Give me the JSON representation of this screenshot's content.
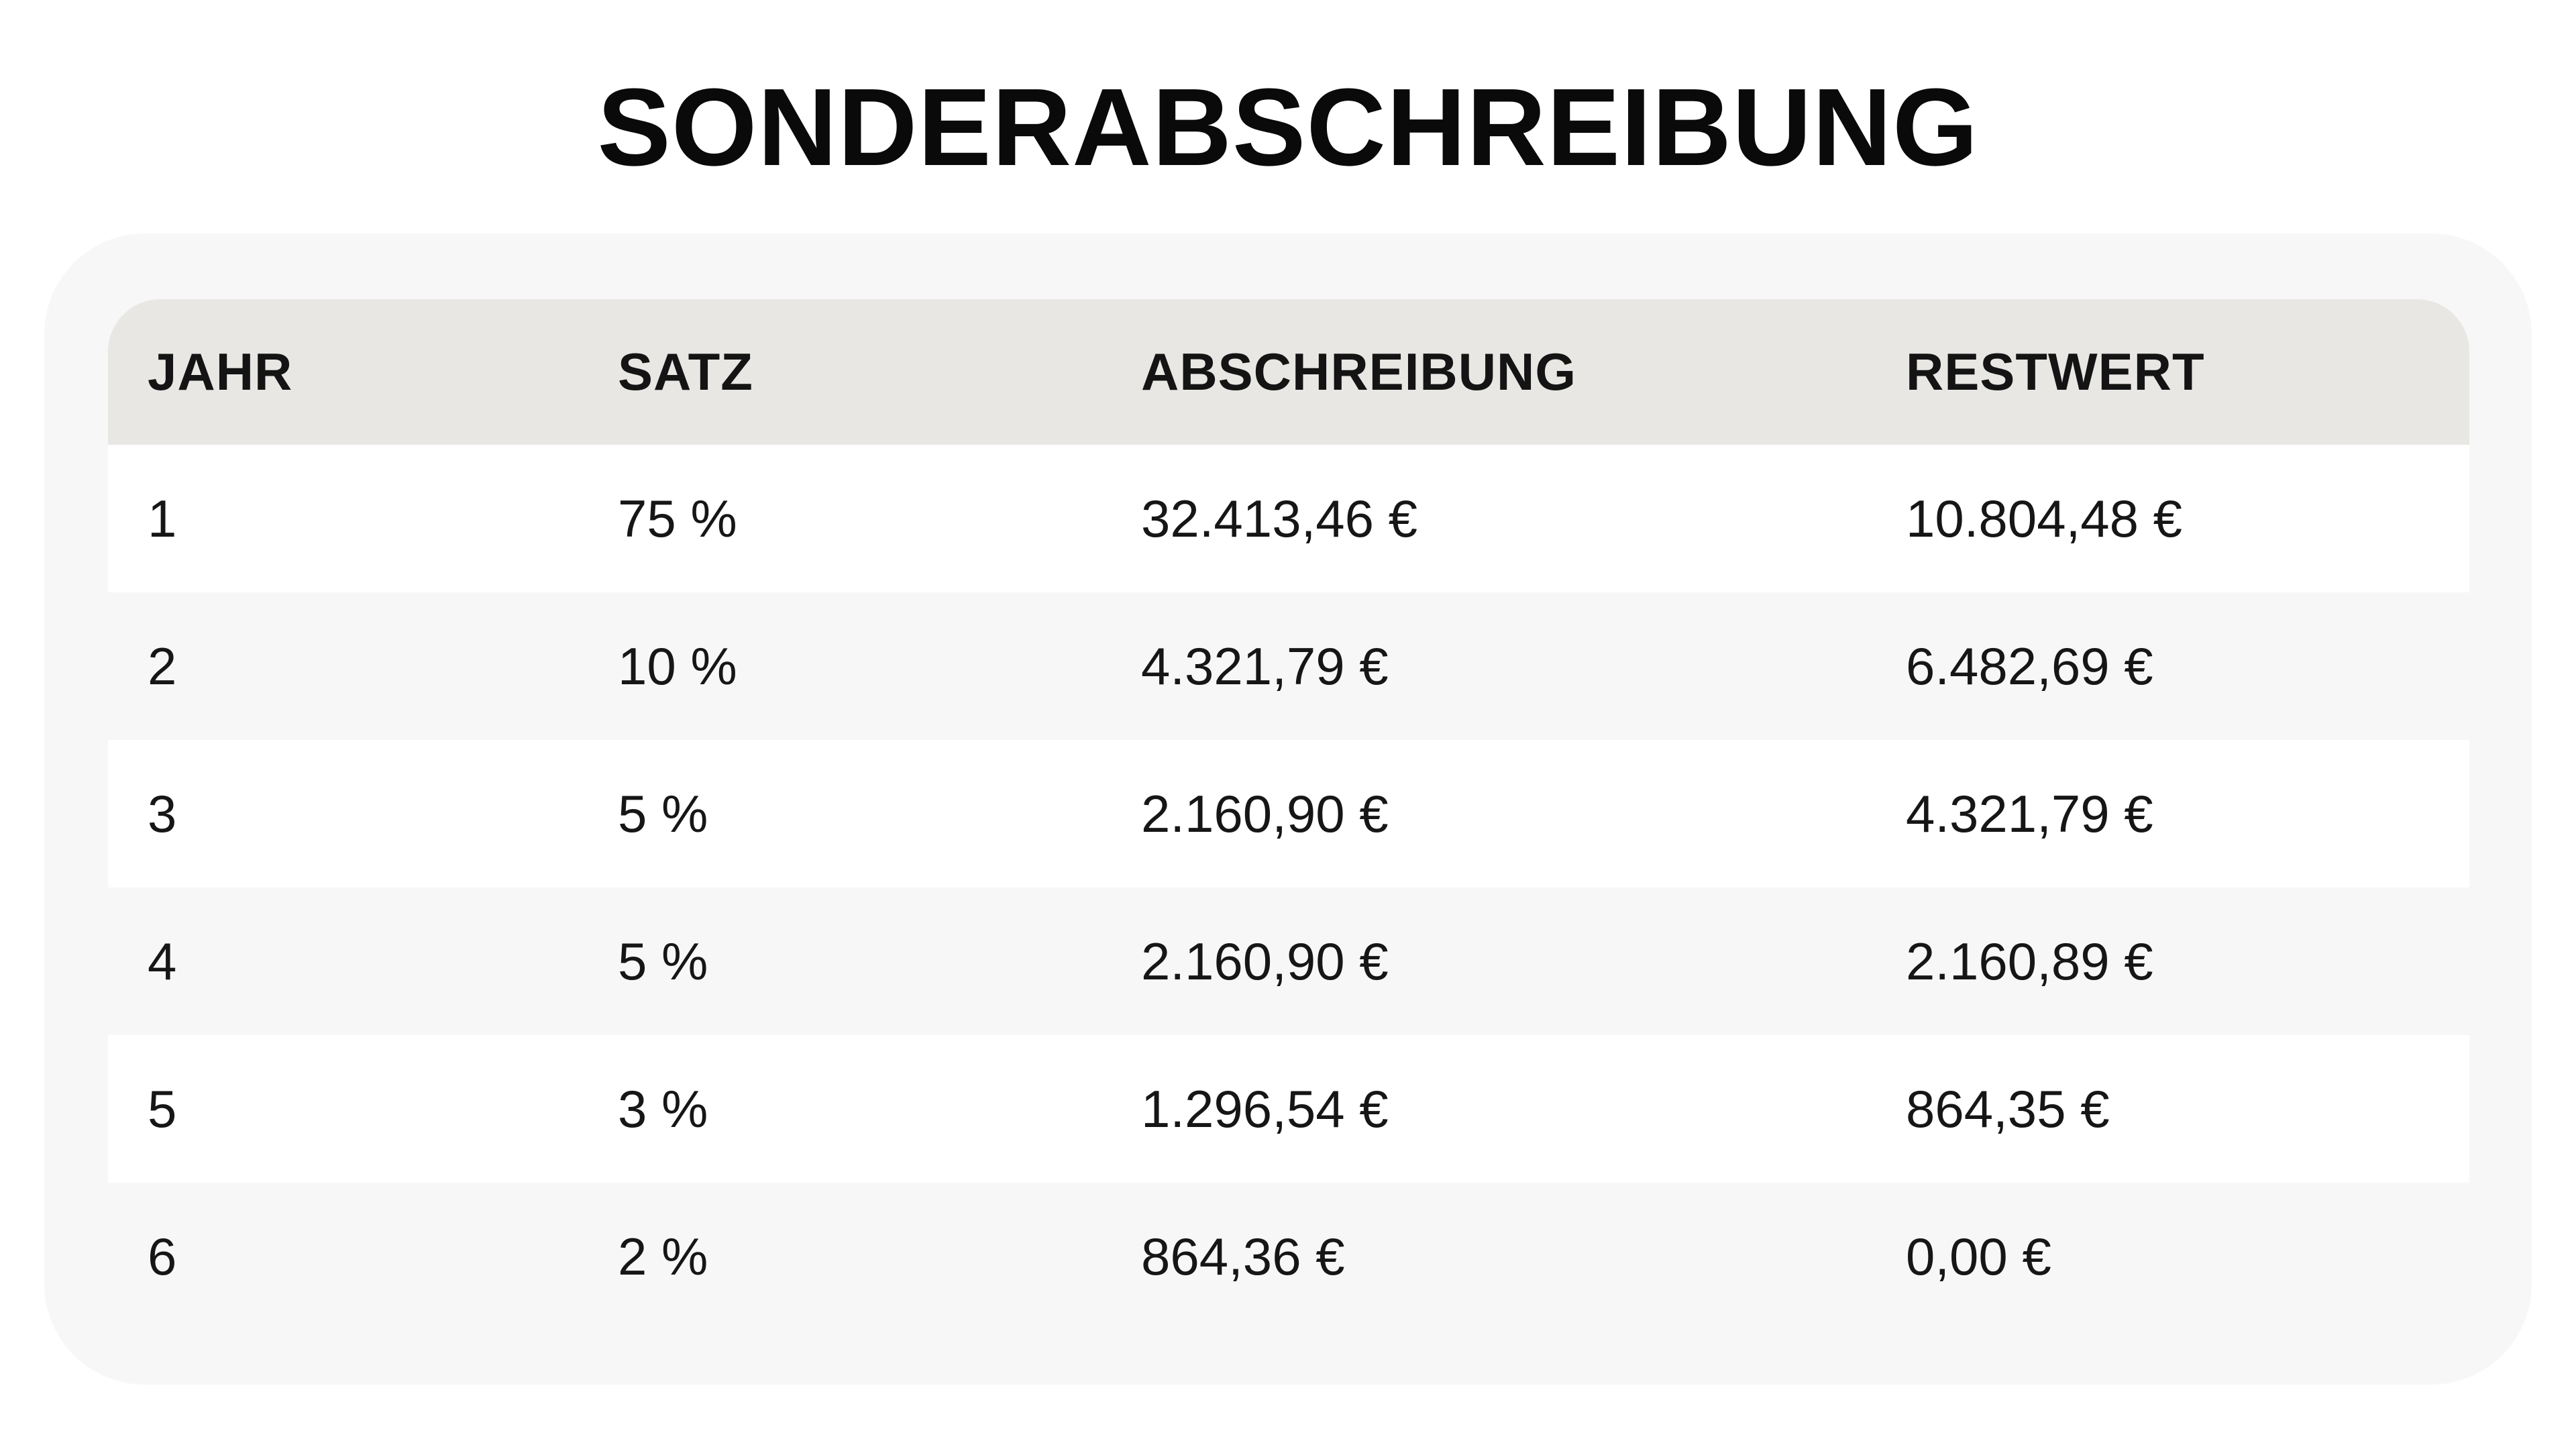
{
  "title": "SONDERABSCHREIBUNG",
  "table": {
    "headers": [
      "JAHR",
      "SATZ",
      "ABSCHREIBUNG",
      "RESTWERT"
    ],
    "rows": [
      [
        "1",
        "75 %",
        "32.413,46 €",
        "10.804,48 €"
      ],
      [
        "2",
        "10 %",
        "4.321,79 €",
        "6.482,69 €"
      ],
      [
        "3",
        "5 %",
        "2.160,90 €",
        "4.321,79 €"
      ],
      [
        "4",
        "5 %",
        "2.160,90 €",
        "2.160,89 €"
      ],
      [
        "5",
        "3 %",
        "1.296,54 €",
        "864,35 €"
      ],
      [
        "6",
        "2 %",
        "864,36 €",
        "0,00 €"
      ]
    ]
  },
  "colors": {
    "header_background": "#e8e7e4",
    "card_background": "#f7f7f7",
    "row_white": "#ffffff",
    "row_gray": "#f7f7f7",
    "text": "#111111"
  }
}
